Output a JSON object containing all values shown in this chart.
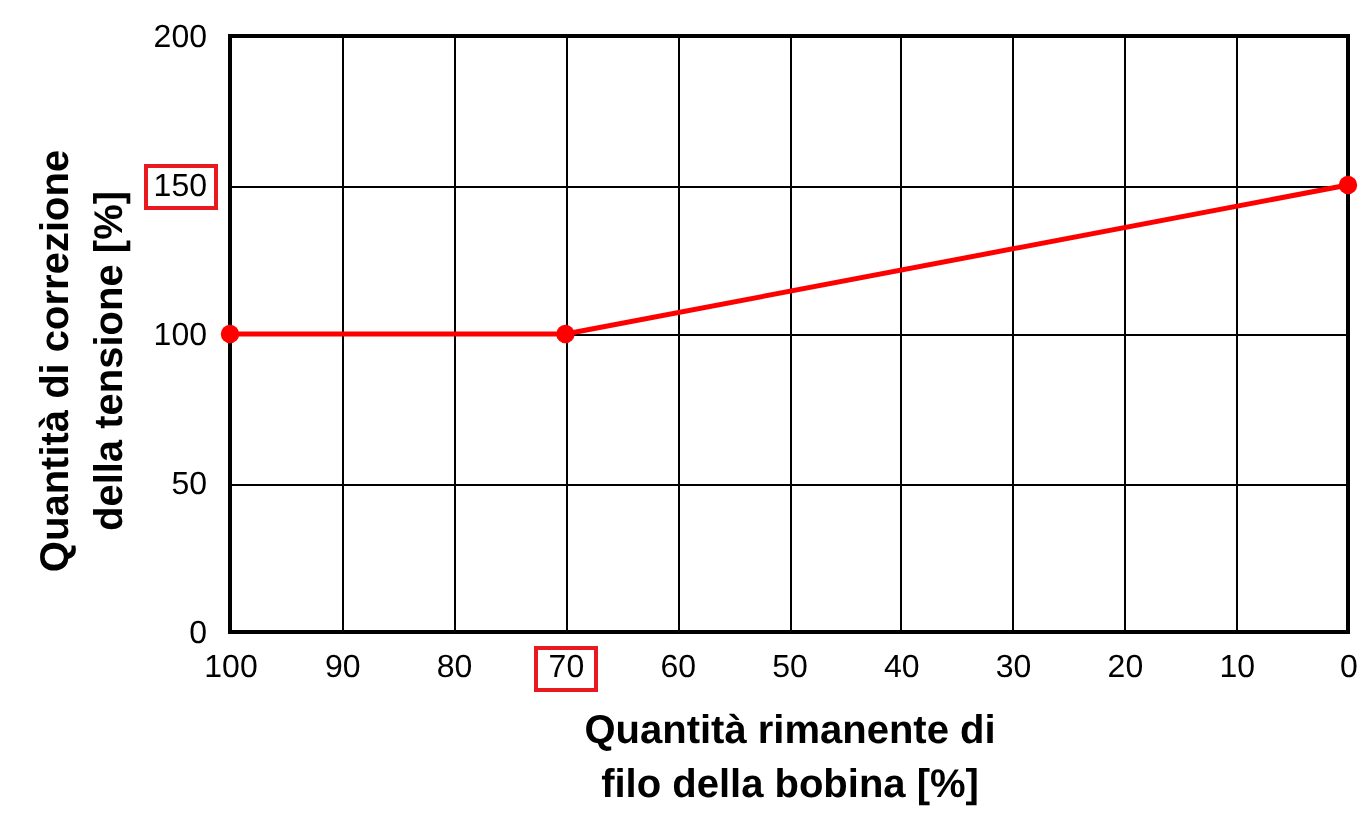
{
  "chart_data": {
    "type": "line",
    "xlabel": "Quantità rimanente di filo della bobina [%]",
    "ylabel": "Quantità di correzione della tensione [%]",
    "x": [
      100,
      70,
      0
    ],
    "series": [
      {
        "color": "#ff0000",
        "values": [
          100,
          100,
          150
        ]
      }
    ],
    "xlim": [
      100,
      0
    ],
    "xticks": [
      100,
      90,
      80,
      70,
      60,
      50,
      40,
      30,
      20,
      10,
      0
    ],
    "ylim": [
      0,
      200
    ],
    "yticks": [
      0,
      50,
      100,
      150,
      200
    ],
    "grid": true,
    "marker": "circle",
    "line_style": "solid"
  }
}
